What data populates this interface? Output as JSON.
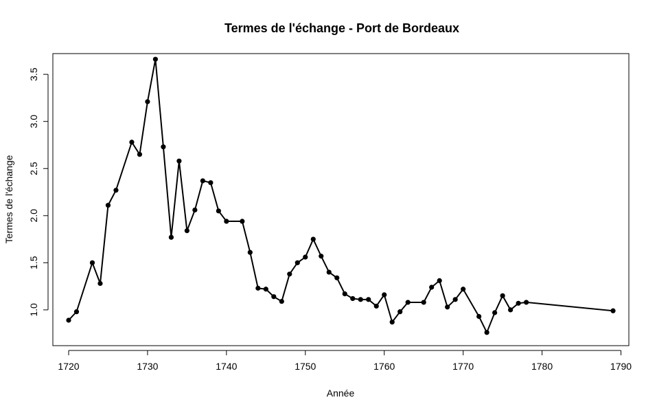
{
  "chart_data": {
    "type": "line",
    "title": "Termes de l'échange - Port de Bordeaux",
    "xlabel": "Année",
    "ylabel": "Termes de l'échange",
    "xlim": [
      1718,
      1791
    ],
    "ylim": [
      0.62,
      3.72
    ],
    "xticks": [
      1720,
      1730,
      1740,
      1750,
      1760,
      1770,
      1780,
      1790
    ],
    "yticks": [
      1.0,
      1.5,
      2.0,
      2.5,
      3.0,
      3.5
    ],
    "xtick_labels": [
      "1720",
      "1730",
      "1740",
      "1750",
      "1760",
      "1770",
      "1780",
      "1790"
    ],
    "ytick_labels": [
      "1.0",
      "1.5",
      "2.0",
      "2.5",
      "3.0",
      "3.5"
    ],
    "grid": false,
    "marker": "filled-circle",
    "color": "#000000",
    "x": [
      1720,
      1721,
      1723,
      1724,
      1725,
      1726,
      1728,
      1729,
      1730,
      1731,
      1732,
      1733,
      1734,
      1735,
      1736,
      1737,
      1738,
      1739,
      1740,
      1742,
      1743,
      1744,
      1745,
      1746,
      1747,
      1748,
      1749,
      1750,
      1751,
      1752,
      1753,
      1754,
      1755,
      1756,
      1757,
      1758,
      1759,
      1760,
      1761,
      1762,
      1763,
      1765,
      1766,
      1767,
      1768,
      1769,
      1770,
      1772,
      1773,
      1774,
      1775,
      1776,
      1777,
      1778,
      1789
    ],
    "y": [
      0.89,
      0.98,
      1.5,
      1.28,
      2.11,
      2.27,
      2.78,
      2.65,
      3.21,
      3.66,
      2.73,
      1.77,
      2.58,
      1.84,
      2.06,
      2.37,
      2.35,
      2.05,
      1.94,
      1.94,
      1.61,
      1.23,
      1.22,
      1.14,
      1.09,
      1.38,
      1.5,
      1.56,
      1.75,
      1.57,
      1.4,
      1.34,
      1.17,
      1.12,
      1.11,
      1.11,
      1.04,
      1.16,
      0.87,
      0.98,
      1.08,
      1.08,
      1.24,
      1.31,
      1.03,
      1.11,
      1.22,
      0.93,
      0.76,
      0.97,
      1.15,
      1.0,
      1.07,
      1.08,
      0.99
    ]
  }
}
